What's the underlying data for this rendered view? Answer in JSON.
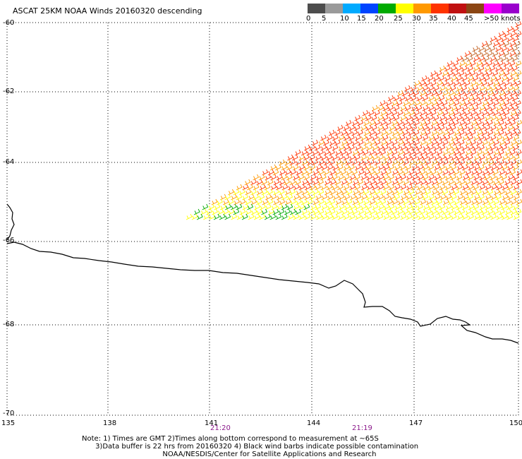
{
  "title": "ASCAT 25KM NOAA Winds 20160320 descending",
  "legend": {
    "labels": [
      "0",
      "5",
      "10",
      "15",
      "20",
      "25",
      "30",
      "35",
      "40",
      "45",
      ">50 knots"
    ],
    "colors": [
      "#4d4d4d",
      "#9a9a9a",
      "#00aaff",
      "#0044ff",
      "#00aa00",
      "#ffff00",
      "#ff9900",
      "#ff3300",
      "#c01010",
      "#8b4513",
      "#ff00ff",
      "#9900cc"
    ]
  },
  "axes": {
    "lat_labels": [
      "-60",
      "-62",
      "-64",
      "-66",
      "-68",
      "-70"
    ],
    "lon_labels": [
      "135",
      "138",
      "141",
      "144",
      "147",
      "150"
    ]
  },
  "times": [
    "21:20",
    "21:19"
  ],
  "notes": [
    "Note: 1) Times are GMT 2)Times along bottom correspond to measurement at ~65S",
    "      3)Data buffer is 22 hrs from 20160320 4) Black wind barbs indicate possible contamination",
    "                                    NOAA/NESDIS/Center for Satellite Applications and Research"
  ],
  "colors": {
    "coast": "#000000",
    "grid": "#000000",
    "time_label": "#8b1a8b"
  }
}
